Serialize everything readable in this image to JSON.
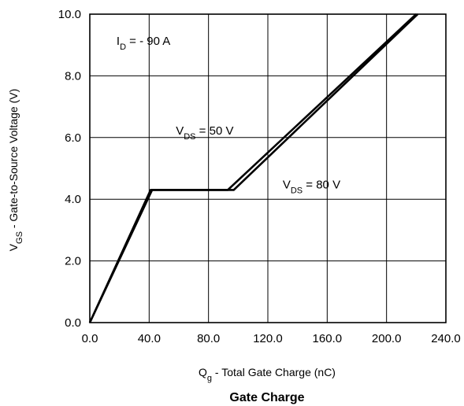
{
  "chart_data": {
    "type": "line",
    "title": "Gate Charge",
    "xlabel": {
      "main": "Q",
      "sub": "g",
      "rest": " - Total Gate Charge (nC)"
    },
    "ylabel": {
      "main": "V",
      "sub": "GS",
      "rest": " - Gate-to-Source Voltage (V)"
    },
    "xlim": [
      0,
      240
    ],
    "ylim": [
      0,
      10
    ],
    "grid": true,
    "x_ticks": [
      0,
      40,
      80,
      120,
      160,
      200,
      240
    ],
    "x_tick_labels": [
      "0.0",
      "40.0",
      "80.0",
      "120.0",
      "160.0",
      "200.0",
      "240.0"
    ],
    "y_ticks": [
      0,
      2,
      4,
      6,
      8,
      10
    ],
    "y_tick_labels": [
      "0.0",
      "2.0",
      "4.0",
      "6.0",
      "8.0",
      "10.0"
    ],
    "series": [
      {
        "name": "VDS = 50 V",
        "x": [
          0,
          41,
          93,
          220
        ],
        "y": [
          0,
          4.3,
          4.3,
          10.0
        ]
      },
      {
        "name": "VDS = 80 V",
        "x": [
          0,
          42,
          97,
          221
        ],
        "y": [
          0,
          4.3,
          4.3,
          10.0
        ]
      }
    ],
    "annotations": [
      {
        "main": "I",
        "sub": "D",
        "rest": " = - 90 A",
        "x": 18,
        "y": 9.0
      },
      {
        "main": "V",
        "sub": "DS",
        "rest": " = 50 V",
        "x": 58,
        "y": 6.1
      },
      {
        "main": "V",
        "sub": "DS",
        "rest": " = 80 V",
        "x": 130,
        "y": 4.35
      }
    ],
    "line_color": "#000000"
  }
}
